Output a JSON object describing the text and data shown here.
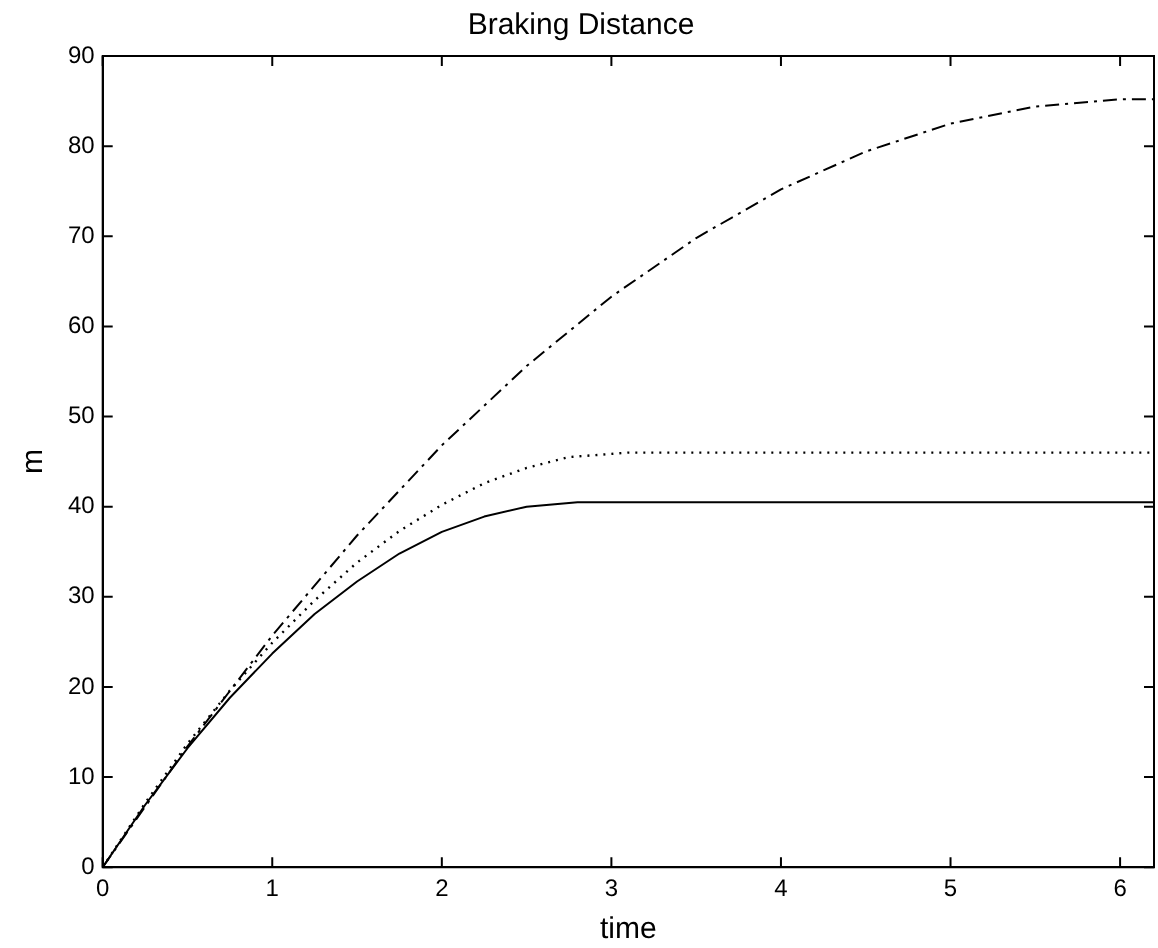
{
  "chart_data": {
    "type": "line",
    "title": "Braking Distance",
    "xlabel": "time",
    "ylabel": "m",
    "xlim": [
      0,
      6.2
    ],
    "xticks": [
      0,
      1,
      2,
      3,
      4,
      5,
      6
    ],
    "ylim": [
      0,
      90
    ],
    "yticks": [
      0,
      10,
      20,
      30,
      40,
      50,
      60,
      70,
      80,
      90
    ],
    "grid": false,
    "legend": false,
    "marker": "none",
    "series": [
      {
        "color": "#000000",
        "line_style": "solid",
        "x": [
          0,
          0.25,
          0.5,
          0.75,
          1,
          1.25,
          1.5,
          1.75,
          2,
          2.25,
          2.5,
          2.8,
          6.2
        ],
        "values": [
          0,
          6.9,
          13.2,
          18.8,
          23.7,
          28.1,
          31.7,
          34.8,
          37.2,
          38.9,
          40.0,
          40.5,
          40.5
        ]
      },
      {
        "color": "#000000",
        "line_style": "dotted",
        "x": [
          0,
          0.25,
          0.5,
          0.75,
          1,
          1.25,
          1.5,
          1.75,
          2,
          2.25,
          2.5,
          2.75,
          3.1,
          6.2
        ],
        "values": [
          0,
          7.1,
          13.7,
          19.6,
          24.9,
          29.6,
          33.8,
          37.3,
          40.2,
          42.6,
          44.3,
          45.5,
          46.0,
          46.0
        ]
      },
      {
        "color": "#000000",
        "line_style": "dashed",
        "x": [
          0,
          0.5,
          1,
          1.5,
          2,
          2.5,
          3,
          3.5,
          4,
          4.5,
          5,
          5.5,
          6,
          6.2
        ],
        "values": [
          0,
          13.4,
          25.7,
          36.8,
          46.8,
          55.6,
          63.3,
          69.8,
          75.2,
          79.4,
          82.5,
          84.4,
          85.2,
          85.2
        ]
      }
    ]
  }
}
